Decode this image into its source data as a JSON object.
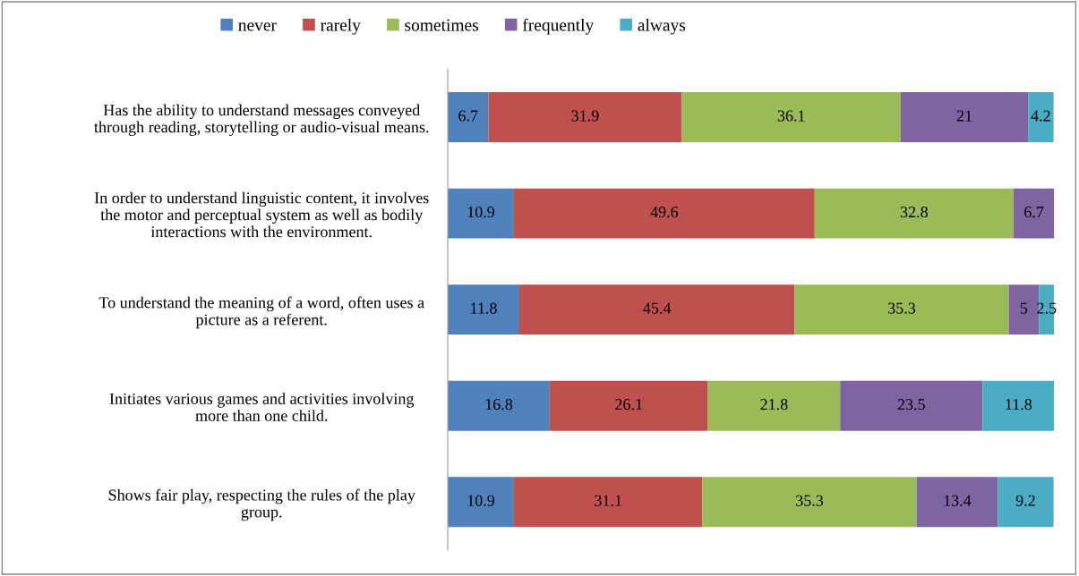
{
  "chart_data": {
    "type": "bar",
    "orientation": "horizontal",
    "stacked": true,
    "data_labels": true,
    "tick_labels": "y",
    "legend": "top",
    "grid": false,
    "xlim": [
      0,
      100
    ],
    "categories": [
      "Has the ability to understand messages conveyed\nthrough reading, storytelling or audio-visual means.",
      "In order to understand linguistic content, it involves\nthe motor and perceptual system as well as bodily\ninteractions with the environment.",
      "To understand the meaning of a word, often uses a\npicture as a referent.",
      "Initiates various games and activities involving\nmore than one child.",
      "Shows fair play, respecting the rules of the play\ngroup."
    ],
    "series": [
      {
        "name": "never",
        "color": "#4f81bd",
        "values": [
          6.7,
          10.9,
          11.8,
          16.8,
          10.9
        ]
      },
      {
        "name": "rarely",
        "color": "#c0504d",
        "values": [
          31.9,
          49.6,
          45.4,
          26.1,
          31.1
        ]
      },
      {
        "name": "sometimes",
        "color": "#9bbb59",
        "values": [
          36.1,
          32.8,
          35.3,
          21.8,
          35.3
        ]
      },
      {
        "name": "frequently",
        "color": "#8064a2",
        "values": [
          21,
          6.7,
          5,
          23.5,
          13.4
        ]
      },
      {
        "name": "always",
        "color": "#4bacc6",
        "values": [
          4.2,
          null,
          2.5,
          11.8,
          9.2
        ]
      }
    ]
  }
}
